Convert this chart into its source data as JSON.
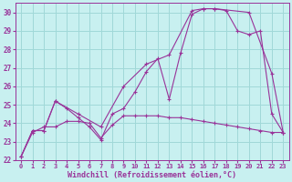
{
  "xlabel": "Windchill (Refroidissement éolien,°C)",
  "bg_color": "#c8f0f0",
  "line_color": "#993399",
  "grid_color": "#a0d8d8",
  "ylim": [
    22,
    30.5
  ],
  "xlim": [
    -0.5,
    23.5
  ],
  "yticks": [
    22,
    23,
    24,
    25,
    26,
    27,
    28,
    29,
    30
  ],
  "xticks": [
    0,
    1,
    2,
    3,
    4,
    5,
    6,
    7,
    8,
    9,
    10,
    11,
    12,
    13,
    14,
    15,
    16,
    17,
    18,
    19,
    20,
    21,
    22,
    23
  ],
  "line1_x": [
    0,
    1,
    2,
    3,
    4,
    5,
    6,
    7,
    8,
    9,
    10,
    11,
    12,
    13,
    14,
    15,
    16,
    17,
    18,
    19,
    20,
    21,
    22,
    23
  ],
  "line1_y": [
    22.2,
    23.5,
    23.8,
    23.8,
    24.1,
    24.1,
    24.0,
    23.2,
    23.9,
    24.4,
    24.4,
    24.4,
    24.4,
    24.3,
    24.3,
    24.2,
    24.1,
    24.0,
    23.9,
    23.8,
    23.7,
    23.6,
    23.5,
    23.5
  ],
  "line2_x": [
    0,
    1,
    2,
    3,
    4,
    5,
    6,
    7,
    8,
    9,
    10,
    11,
    12,
    13,
    14,
    15,
    16,
    17,
    18,
    19,
    20,
    21,
    22,
    23
  ],
  "line2_y": [
    22.2,
    23.6,
    23.6,
    25.2,
    24.8,
    24.3,
    23.8,
    23.1,
    24.5,
    24.8,
    25.7,
    26.8,
    27.5,
    25.3,
    27.8,
    29.9,
    30.2,
    30.2,
    30.1,
    29.0,
    28.8,
    29.0,
    24.5,
    23.5
  ],
  "line3_x": [
    0,
    1,
    2,
    3,
    5,
    7,
    9,
    11,
    13,
    15,
    16,
    17,
    20,
    22,
    23
  ],
  "line3_y": [
    22.2,
    23.6,
    23.6,
    25.2,
    24.5,
    23.8,
    26.0,
    27.2,
    27.7,
    30.1,
    30.2,
    30.2,
    30.0,
    26.7,
    23.5
  ]
}
